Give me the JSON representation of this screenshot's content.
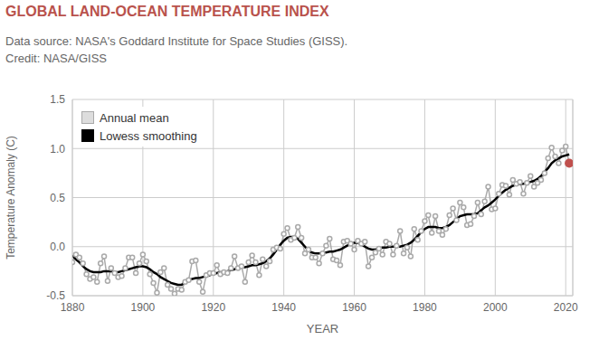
{
  "chart_data": {
    "type": "line",
    "title": "GLOBAL LAND-OCEAN TEMPERATURE INDEX",
    "subtitle": [
      "Data source: NASA's Goddard Institute for Space Studies (GISS).",
      "Credit: NASA/GISS"
    ],
    "x_label": "YEAR",
    "y_label": "Temperature Anomaly (C)",
    "legend": "upper left",
    "grid": true,
    "x": [
      1880,
      1881,
      1882,
      1883,
      1884,
      1885,
      1886,
      1887,
      1888,
      1889,
      1890,
      1891,
      1892,
      1893,
      1894,
      1895,
      1896,
      1897,
      1898,
      1899,
      1900,
      1901,
      1902,
      1903,
      1904,
      1905,
      1906,
      1907,
      1908,
      1909,
      1910,
      1911,
      1912,
      1913,
      1914,
      1915,
      1916,
      1917,
      1918,
      1919,
      1920,
      1921,
      1922,
      1923,
      1924,
      1925,
      1926,
      1927,
      1928,
      1929,
      1930,
      1931,
      1932,
      1933,
      1934,
      1935,
      1936,
      1937,
      1938,
      1939,
      1940,
      1941,
      1942,
      1943,
      1944,
      1945,
      1946,
      1947,
      1948,
      1949,
      1950,
      1951,
      1952,
      1953,
      1954,
      1955,
      1956,
      1957,
      1958,
      1959,
      1960,
      1961,
      1962,
      1963,
      1964,
      1965,
      1966,
      1967,
      1968,
      1969,
      1970,
      1971,
      1972,
      1973,
      1974,
      1975,
      1976,
      1977,
      1978,
      1979,
      1980,
      1981,
      1982,
      1983,
      1984,
      1985,
      1986,
      1987,
      1988,
      1989,
      1990,
      1991,
      1992,
      1993,
      1994,
      1995,
      1996,
      1997,
      1998,
      1999,
      2000,
      2001,
      2002,
      2003,
      2004,
      2005,
      2006,
      2007,
      2008,
      2009,
      2010,
      2011,
      2012,
      2013,
      2014,
      2015,
      2016,
      2017,
      2018,
      2019,
      2020,
      2021
    ],
    "series": [
      {
        "name": "Annual mean",
        "color": "#aaaaaa",
        "marker": "circle",
        "values": [
          -0.16,
          -0.08,
          -0.11,
          -0.17,
          -0.28,
          -0.33,
          -0.31,
          -0.36,
          -0.17,
          -0.1,
          -0.35,
          -0.22,
          -0.27,
          -0.31,
          -0.3,
          -0.22,
          -0.11,
          -0.11,
          -0.27,
          -0.17,
          -0.08,
          -0.15,
          -0.28,
          -0.37,
          -0.47,
          -0.26,
          -0.22,
          -0.39,
          -0.43,
          -0.48,
          -0.43,
          -0.44,
          -0.36,
          -0.34,
          -0.15,
          -0.14,
          -0.36,
          -0.46,
          -0.29,
          -0.27,
          -0.27,
          -0.19,
          -0.28,
          -0.26,
          -0.27,
          -0.22,
          -0.1,
          -0.22,
          -0.2,
          -0.36,
          -0.16,
          -0.09,
          -0.16,
          -0.29,
          -0.13,
          -0.2,
          -0.15,
          -0.03,
          -0.01,
          -0.02,
          0.13,
          0.19,
          0.07,
          0.09,
          0.2,
          0.09,
          -0.07,
          -0.03,
          -0.11,
          -0.11,
          -0.17,
          -0.07,
          0.01,
          0.08,
          -0.13,
          -0.14,
          -0.19,
          0.05,
          0.06,
          0.03,
          -0.03,
          0.06,
          0.03,
          0.05,
          -0.2,
          -0.11,
          -0.06,
          -0.02,
          -0.08,
          0.05,
          0.03,
          -0.08,
          0.01,
          0.16,
          -0.07,
          -0.01,
          -0.1,
          0.18,
          0.07,
          0.16,
          0.26,
          0.32,
          0.14,
          0.31,
          0.16,
          0.12,
          0.18,
          0.32,
          0.39,
          0.27,
          0.45,
          0.4,
          0.22,
          0.23,
          0.31,
          0.45,
          0.33,
          0.46,
          0.61,
          0.38,
          0.39,
          0.54,
          0.63,
          0.62,
          0.53,
          0.68,
          0.64,
          0.66,
          0.54,
          0.65,
          0.72,
          0.61,
          0.65,
          0.68,
          0.75,
          0.9,
          1.01,
          0.92,
          0.85,
          0.98,
          1.02,
          0.85
        ]
      },
      {
        "name": "Lowess smoothing",
        "color": "#000000",
        "marker": "none",
        "values": [
          -0.09,
          -0.13,
          -0.16,
          -0.2,
          -0.23,
          -0.25,
          -0.26,
          -0.26,
          -0.26,
          -0.25,
          -0.25,
          -0.25,
          -0.26,
          -0.26,
          -0.25,
          -0.24,
          -0.23,
          -0.22,
          -0.21,
          -0.2,
          -0.2,
          -0.21,
          -0.23,
          -0.26,
          -0.28,
          -0.31,
          -0.33,
          -0.35,
          -0.37,
          -0.38,
          -0.39,
          -0.39,
          -0.36,
          -0.34,
          -0.33,
          -0.32,
          -0.32,
          -0.31,
          -0.3,
          -0.29,
          -0.28,
          -0.27,
          -0.26,
          -0.26,
          -0.25,
          -0.24,
          -0.23,
          -0.22,
          -0.21,
          -0.21,
          -0.2,
          -0.19,
          -0.19,
          -0.18,
          -0.17,
          -0.15,
          -0.12,
          -0.08,
          -0.03,
          0.02,
          0.06,
          0.09,
          0.1,
          0.1,
          0.08,
          0.04,
          0.0,
          -0.04,
          -0.06,
          -0.07,
          -0.07,
          -0.06,
          -0.06,
          -0.05,
          -0.05,
          -0.04,
          -0.03,
          -0.01,
          0.01,
          0.03,
          0.04,
          0.04,
          0.02,
          0.0,
          -0.02,
          -0.03,
          -0.03,
          -0.02,
          -0.01,
          -0.01,
          0.0,
          0.0,
          0.0,
          0.0,
          0.01,
          0.02,
          0.04,
          0.07,
          0.11,
          0.15,
          0.18,
          0.2,
          0.2,
          0.2,
          0.19,
          0.19,
          0.2,
          0.22,
          0.25,
          0.28,
          0.31,
          0.32,
          0.33,
          0.33,
          0.33,
          0.34,
          0.37,
          0.4,
          0.42,
          0.45,
          0.48,
          0.52,
          0.55,
          0.58,
          0.6,
          0.62,
          0.63,
          0.64,
          0.64,
          0.65,
          0.66,
          0.67,
          0.69,
          0.72,
          0.76,
          0.8,
          0.85,
          0.88,
          0.9,
          0.92,
          0.93,
          0.94
        ]
      },
      {
        "type": "scatter",
        "color": "#c0504d",
        "marker": "circle",
        "x": [
          2021
        ],
        "values": [
          0.85
        ]
      }
    ],
    "xlim": [
      1880,
      2022
    ],
    "xticks": [
      1880,
      1900,
      1920,
      1940,
      1960,
      1980,
      2000,
      2020
    ],
    "ylim": [
      -0.5,
      1.5
    ],
    "yticks": [
      -0.5,
      {
        "value": 0,
        "label": "0.0"
      },
      0.5,
      {
        "value": 1,
        "label": "1.0"
      },
      1.5
    ]
  }
}
